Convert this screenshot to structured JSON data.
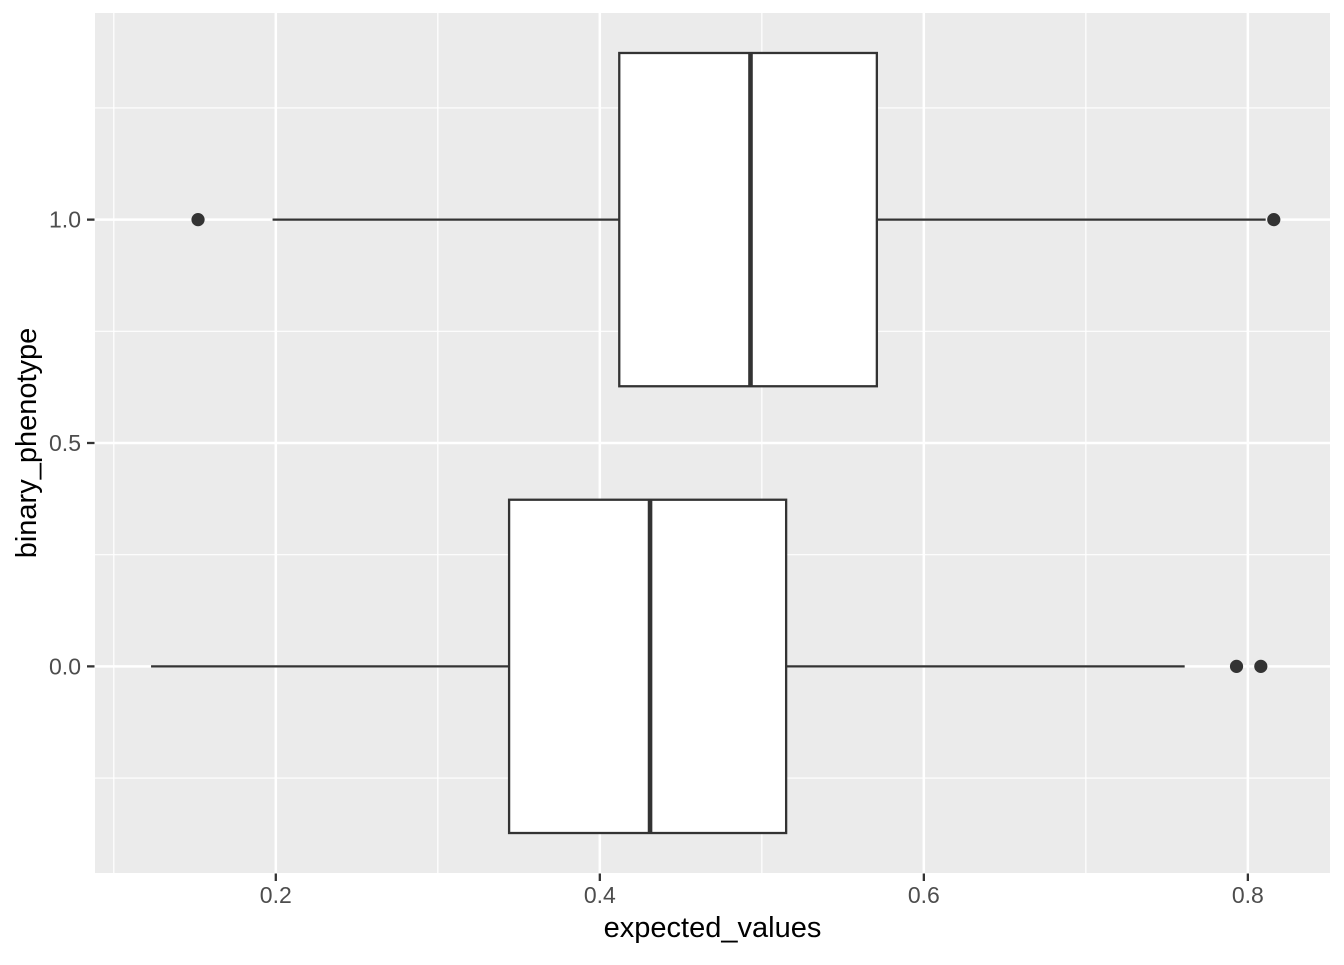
{
  "chart_data": {
    "type": "boxplot",
    "orientation": "horizontal",
    "title": "",
    "xlabel": "expected_values",
    "ylabel": "binary_phenotype",
    "x_ticks": [
      {
        "value": 0.2,
        "label": "0.2"
      },
      {
        "value": 0.4,
        "label": "0.4"
      },
      {
        "value": 0.6,
        "label": "0.6"
      },
      {
        "value": 0.8,
        "label": "0.8"
      }
    ],
    "y_ticks": [
      {
        "value": 0.0,
        "label": "0.0"
      },
      {
        "value": 0.5,
        "label": "0.5"
      },
      {
        "value": 1.0,
        "label": "1.0"
      }
    ],
    "x_minor": [
      0.1,
      0.3,
      0.5,
      0.7
    ],
    "y_minor": [
      -0.25,
      0.25,
      0.75,
      1.25
    ],
    "xlim": [
      0.0884,
      0.8507
    ],
    "ylim": [
      -0.4625,
      1.4625
    ],
    "box_half_height": 0.373,
    "series": [
      {
        "group": "0.0",
        "y": 0,
        "whisker_low": 0.123,
        "q1": 0.344,
        "median": 0.431,
        "q3": 0.515,
        "whisker_high": 0.761,
        "outliers": [
          0.793,
          0.808
        ]
      },
      {
        "group": "1.0",
        "y": 1,
        "whisker_low": 0.198,
        "q1": 0.412,
        "median": 0.493,
        "q3": 0.571,
        "whisker_high": 0.811,
        "outliers": [
          0.152,
          0.816
        ]
      }
    ],
    "style": {
      "panel_bg": "#EBEBEB",
      "grid_major_color": "#FFFFFF",
      "grid_minor_color": "#FFFFFF",
      "box_stroke": "#333333",
      "box_fill": "#FFFFFF",
      "tick_color": "#333333",
      "tick_label_color": "#4D4D4D",
      "axis_title_color": "#000000"
    }
  }
}
